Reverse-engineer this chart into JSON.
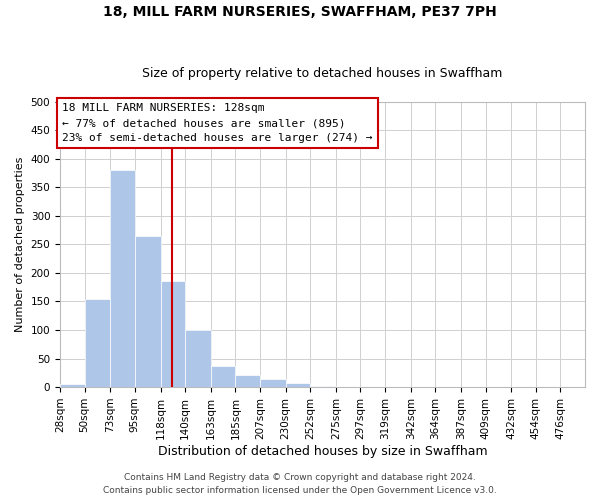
{
  "title": "18, MILL FARM NURSERIES, SWAFFHAM, PE37 7PH",
  "subtitle": "Size of property relative to detached houses in Swaffham",
  "xlabel": "Distribution of detached houses by size in Swaffham",
  "ylabel": "Number of detached properties",
  "bar_values": [
    6,
    155,
    380,
    265,
    185,
    100,
    37,
    22,
    14,
    8,
    2,
    0,
    0,
    1,
    0,
    0,
    0,
    0,
    0,
    0,
    0
  ],
  "bin_edges": [
    28,
    50,
    73,
    95,
    118,
    140,
    163,
    185,
    207,
    230,
    252,
    275,
    297,
    319,
    342,
    364,
    387,
    409,
    432,
    454,
    476,
    498
  ],
  "xlabels": [
    "28sqm",
    "50sqm",
    "73sqm",
    "95sqm",
    "118sqm",
    "140sqm",
    "163sqm",
    "185sqm",
    "207sqm",
    "230sqm",
    "252sqm",
    "275sqm",
    "297sqm",
    "319sqm",
    "342sqm",
    "364sqm",
    "387sqm",
    "409sqm",
    "432sqm",
    "454sqm",
    "476sqm"
  ],
  "bar_color": "#aec6e8",
  "vline_x": 128,
  "vline_color": "#cc0000",
  "ylim": [
    0,
    500
  ],
  "yticks": [
    0,
    50,
    100,
    150,
    200,
    250,
    300,
    350,
    400,
    450,
    500
  ],
  "annotation_title": "18 MILL FARM NURSERIES: 128sqm",
  "annotation_line1": "← 77% of detached houses are smaller (895)",
  "annotation_line2": "23% of semi-detached houses are larger (274) →",
  "annotation_box_color": "#ffffff",
  "annotation_box_edge": "#cc0000",
  "grid_color": "#d0d0d0",
  "footer1": "Contains HM Land Registry data © Crown copyright and database right 2024.",
  "footer2": "Contains public sector information licensed under the Open Government Licence v3.0.",
  "title_fontsize": 10,
  "subtitle_fontsize": 9,
  "ylabel_fontsize": 8,
  "xlabel_fontsize": 9,
  "tick_fontsize": 7.5,
  "annotation_fontsize": 8,
  "footer_fontsize": 6.5
}
